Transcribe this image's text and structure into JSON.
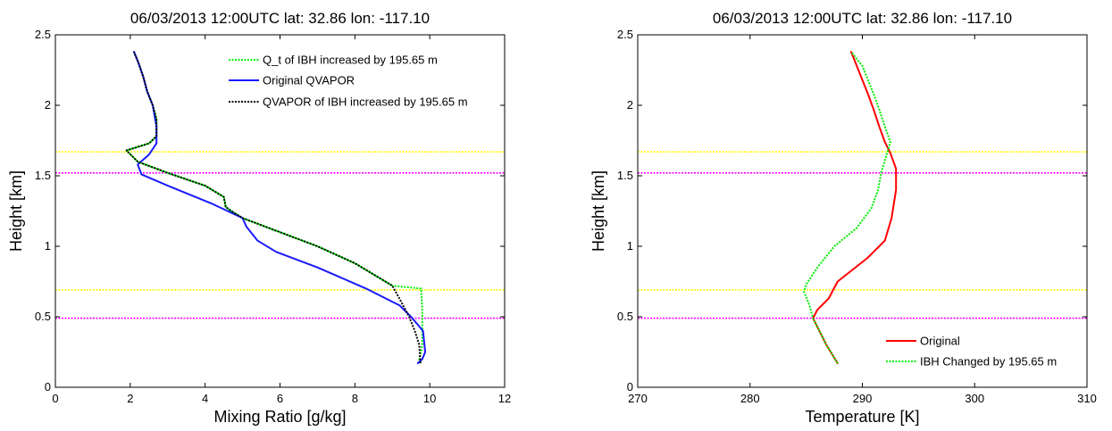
{
  "chart_data": [
    {
      "type": "line",
      "title": "06/03/2013 12:00UTC lat: 32.86 lon: -117.10",
      "xlabel": "Mixing Ratio [g/kg]",
      "ylabel": "Height [km]",
      "xlim": [
        0,
        12
      ],
      "ylim": [
        0,
        2.5
      ],
      "xticks": [
        "0",
        "2",
        "4",
        "6",
        "8",
        "10",
        "12"
      ],
      "yticks": [
        "0",
        "0.5",
        "1",
        "1.5",
        "2",
        "2.5"
      ],
      "grid": false,
      "legend_position": "top-right",
      "colors": {
        "qt": "#00ee00",
        "original": "#1a1aff",
        "qvapor": "#000000",
        "hline_yellow": "#ffff00",
        "hline_magenta": "#ff00ff"
      },
      "hlines": [
        {
          "y": 1.67,
          "color": "#ffff00"
        },
        {
          "y": 1.52,
          "color": "#ff00ff"
        },
        {
          "y": 0.69,
          "color": "#ffff00"
        },
        {
          "y": 0.49,
          "color": "#ff00ff"
        }
      ],
      "series": [
        {
          "name": "Q_t of IBH increased by  195.65 m",
          "color": "#00ee00",
          "style": "dotted",
          "x": [
            9.7,
            9.8,
            9.8,
            9.8,
            9.78,
            9.77,
            9.0,
            8.5,
            8.0,
            7.0,
            6.0,
            5.0,
            4.7,
            4.55,
            4.5,
            4.0,
            3.0,
            2.2,
            1.9,
            2.5,
            2.7,
            2.7,
            2.6,
            2.45,
            2.35,
            2.22,
            2.1
          ],
          "y": [
            0.17,
            0.3,
            0.45,
            0.55,
            0.65,
            0.7,
            0.72,
            0.8,
            0.88,
            1.0,
            1.1,
            1.2,
            1.25,
            1.28,
            1.35,
            1.43,
            1.52,
            1.6,
            1.68,
            1.73,
            1.78,
            1.9,
            2.0,
            2.1,
            2.2,
            2.3,
            2.38
          ]
        },
        {
          "name": "Original QVAPOR",
          "color": "#1a1aff",
          "style": "solid",
          "x": [
            9.68,
            9.8,
            9.88,
            9.82,
            9.5,
            9.2,
            8.3,
            7.0,
            5.9,
            5.4,
            5.1,
            5.0,
            4.2,
            3.0,
            2.3,
            2.2,
            2.5,
            2.7,
            2.7,
            2.6,
            2.45,
            2.35,
            2.22,
            2.1
          ],
          "y": [
            0.17,
            0.2,
            0.25,
            0.4,
            0.5,
            0.58,
            0.7,
            0.85,
            0.96,
            1.04,
            1.14,
            1.2,
            1.3,
            1.43,
            1.51,
            1.58,
            1.65,
            1.73,
            1.85,
            2.0,
            2.1,
            2.2,
            2.3,
            2.38
          ]
        },
        {
          "name": "QVAPOR of IBH increased by  195.65 m",
          "color": "#000000",
          "style": "dotted",
          "x": [
            9.75,
            9.72,
            9.6,
            9.45,
            9.25,
            9.0,
            8.5,
            8.0,
            7.0,
            6.0,
            5.0,
            4.7,
            4.55,
            4.5,
            4.0,
            3.0,
            2.2,
            1.9,
            2.5,
            2.7,
            2.7,
            2.6,
            2.45,
            2.35,
            2.22,
            2.1
          ],
          "y": [
            0.17,
            0.3,
            0.4,
            0.5,
            0.6,
            0.72,
            0.8,
            0.88,
            1.0,
            1.1,
            1.2,
            1.25,
            1.28,
            1.35,
            1.43,
            1.52,
            1.6,
            1.68,
            1.73,
            1.78,
            1.9,
            2.0,
            2.1,
            2.2,
            2.3,
            2.38
          ]
        }
      ]
    },
    {
      "type": "line",
      "title": "06/03/2013 12:00UTC lat: 32.86 lon: -117.10",
      "xlabel": "Temperature [K]",
      "ylabel": "Height [km]",
      "xlim": [
        270,
        310
      ],
      "ylim": [
        0,
        2.5
      ],
      "xticks": [
        "270",
        "280",
        "290",
        "300",
        "310"
      ],
      "yticks": [
        "0",
        "0.5",
        "1",
        "1.5",
        "2",
        "2.5"
      ],
      "grid": false,
      "legend_position": "bottom-right",
      "colors": {
        "original": "#ff0000",
        "changed": "#00ee00",
        "hline_yellow": "#ffff00",
        "hline_magenta": "#ff00ff"
      },
      "hlines": [
        {
          "y": 1.67,
          "color": "#ffff00"
        },
        {
          "y": 1.52,
          "color": "#ff00ff"
        },
        {
          "y": 0.69,
          "color": "#ffff00"
        },
        {
          "y": 0.49,
          "color": "#ff00ff"
        }
      ],
      "series": [
        {
          "name": "Original",
          "color": "#ff0000",
          "style": "solid",
          "x": [
            287.8,
            286.8,
            285.6,
            286.0,
            287.0,
            287.8,
            290.5,
            292.0,
            292.6,
            293.0,
            293.0,
            292.5,
            292.0,
            291.5,
            291.0,
            290.5,
            290.0,
            289.5,
            289.0
          ],
          "y": [
            0.17,
            0.3,
            0.49,
            0.55,
            0.63,
            0.75,
            0.92,
            1.04,
            1.2,
            1.4,
            1.55,
            1.66,
            1.74,
            1.85,
            1.97,
            2.08,
            2.18,
            2.28,
            2.38
          ]
        },
        {
          "name": "IBH Changed by  195.65 m",
          "color": "#00ee00",
          "style": "dotted",
          "x": [
            287.8,
            286.8,
            285.6,
            285.3,
            284.8,
            285.0,
            286.0,
            287.5,
            289.5,
            290.8,
            291.4,
            291.7,
            292.5,
            292.0,
            291.5,
            291.0,
            290.5,
            290.0,
            289.5,
            289.0
          ],
          "y": [
            0.17,
            0.3,
            0.49,
            0.58,
            0.68,
            0.73,
            0.85,
            1.0,
            1.13,
            1.27,
            1.4,
            1.53,
            1.74,
            1.85,
            1.97,
            2.08,
            2.18,
            2.28,
            2.33,
            2.38
          ]
        }
      ]
    }
  ]
}
